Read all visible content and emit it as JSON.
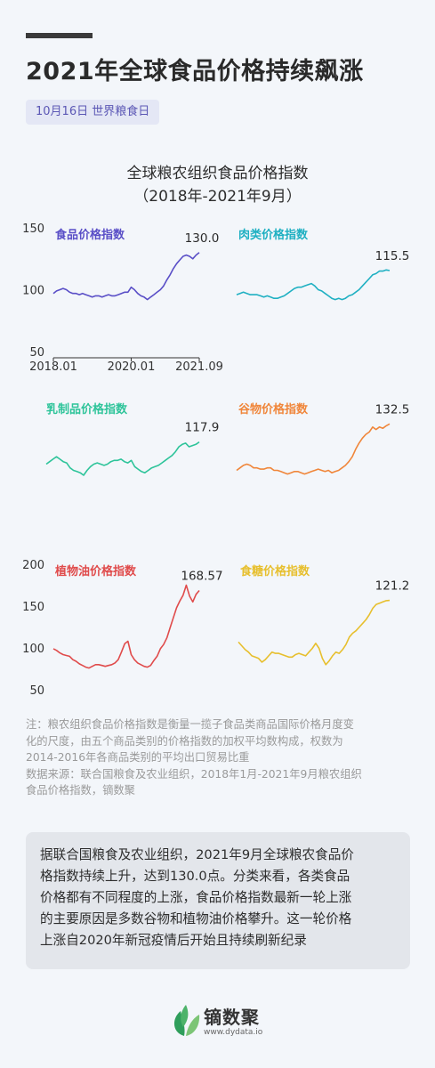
{
  "header": {
    "title": "2021年全球食品价格持续飙涨",
    "tag": "10月16日 世界粮食日"
  },
  "chart_title": {
    "line1": "全球粮农组织食品价格指数",
    "line2": "（2018年-2021年9月）"
  },
  "chart_data": [
    {
      "type": "line",
      "title": "食品价格指数",
      "color": "#5a4fc7",
      "end_label": "130.0",
      "ylim": [
        50,
        150
      ],
      "y_ticks": [
        "150",
        "100",
        "50"
      ],
      "x_ticks": [
        "2018.01",
        "2020.01",
        "2021.09"
      ],
      "values": [
        97,
        99,
        100,
        101,
        100,
        98,
        97,
        97,
        96,
        97,
        96,
        95,
        94,
        95,
        95,
        94,
        95,
        96,
        95,
        95,
        96,
        97,
        98,
        98,
        102,
        100,
        97,
        95,
        94,
        92,
        94,
        96,
        98,
        100,
        103,
        108,
        112,
        117,
        121,
        124,
        127,
        128,
        127,
        125,
        128,
        130
      ]
    },
    {
      "type": "line",
      "title": "肉类价格指数",
      "color": "#1fb0c2",
      "end_label": "115.5",
      "ylim": [
        50,
        150
      ],
      "values": [
        96,
        97,
        98,
        97,
        96,
        96,
        96,
        95,
        94,
        95,
        94,
        93,
        93,
        94,
        95,
        97,
        99,
        101,
        102,
        102,
        103,
        104,
        105,
        103,
        100,
        99,
        97,
        95,
        93,
        92,
        93,
        92,
        93,
        95,
        96,
        98,
        100,
        103,
        106,
        109,
        112,
        113,
        115,
        115,
        116,
        115.5
      ]
    },
    {
      "type": "line",
      "title": "乳制品价格指数",
      "color": "#2ec49a",
      "end_label": "117.9",
      "ylim": [
        50,
        150
      ],
      "values": [
        100,
        102,
        104,
        106,
        104,
        102,
        101,
        97,
        95,
        94,
        93,
        91,
        95,
        98,
        100,
        101,
        100,
        99,
        100,
        102,
        103,
        103,
        104,
        102,
        101,
        103,
        98,
        96,
        94,
        93,
        95,
        97,
        98,
        99,
        101,
        103,
        105,
        107,
        110,
        114,
        116,
        117,
        114,
        115,
        116,
        117.9
      ]
    },
    {
      "type": "line",
      "title": "谷物价格指数",
      "color": "#f0863a",
      "end_label": "132.5",
      "ylim": [
        50,
        150
      ],
      "values": [
        95,
        97,
        99,
        100,
        99,
        97,
        97,
        96,
        96,
        97,
        97,
        95,
        95,
        94,
        93,
        92,
        93,
        94,
        94,
        93,
        92,
        93,
        94,
        95,
        96,
        95,
        94,
        95,
        93,
        94,
        95,
        97,
        99,
        102,
        106,
        112,
        117,
        121,
        124,
        126,
        130,
        128,
        130,
        129,
        131,
        132.5
      ]
    },
    {
      "type": "line",
      "title": "植物油价格指数",
      "color": "#e04b4b",
      "end_label": "168.57",
      "ylim": [
        50,
        200
      ],
      "y_ticks": [
        "200",
        "150",
        "100",
        "50"
      ],
      "values": [
        99,
        97,
        94,
        92,
        91,
        90,
        86,
        84,
        81,
        79,
        77,
        76,
        78,
        80,
        80,
        79,
        78,
        79,
        80,
        82,
        86,
        95,
        105,
        108,
        92,
        86,
        82,
        80,
        78,
        77,
        79,
        85,
        90,
        99,
        104,
        112,
        124,
        136,
        148,
        156,
        163,
        175,
        162,
        155,
        164,
        168.57
      ]
    },
    {
      "type": "line",
      "title": "食糖价格指数",
      "color": "#e7bf2d",
      "end_label": "121.2",
      "ylim": [
        50,
        150
      ],
      "values": [
        88,
        85,
        82,
        80,
        77,
        76,
        75,
        72,
        74,
        77,
        80,
        79,
        79,
        78,
        77,
        76,
        76,
        78,
        79,
        78,
        77,
        80,
        83,
        87,
        83,
        75,
        70,
        73,
        77,
        80,
        79,
        82,
        86,
        92,
        95,
        97,
        100,
        103,
        106,
        110,
        115,
        118,
        119,
        120,
        121,
        121.2
      ]
    }
  ],
  "notes": {
    "line1": "注：粮农组织食品价格指数是衡量一揽子食品类商品国际价格月度变",
    "line2": "化的尺度，由五个商品类别的价格指数的加权平均数构成，权数为",
    "line3": "2014-2016年各商品类别的平均出口贸易比重",
    "line4": "数据来源：联合国粮食及农业组织，2018年1月-2021年9月粮农组织",
    "line5": "食品价格指数，镝数聚"
  },
  "summary": {
    "line1": "据联合国粮食及农业组织，2021年9月全球粮农食品价",
    "line2": "格指数持续上升，达到130.0点。分类来看，各类食品",
    "line3": "价格都有不同程度的上涨，食品价格指数最新一轮上涨",
    "line4": "的主要原因是多数谷物和植物油价格攀升。这一轮价格",
    "line5": "上涨自2020年新冠疫情后开始且持续刷新纪录"
  },
  "footer": {
    "brand": "镝数聚",
    "url": "www.dydata.io"
  },
  "colors": {
    "background": "#f3f6fa",
    "accent": "#5a4fc7",
    "summary_bg": "#e3e6eb"
  }
}
